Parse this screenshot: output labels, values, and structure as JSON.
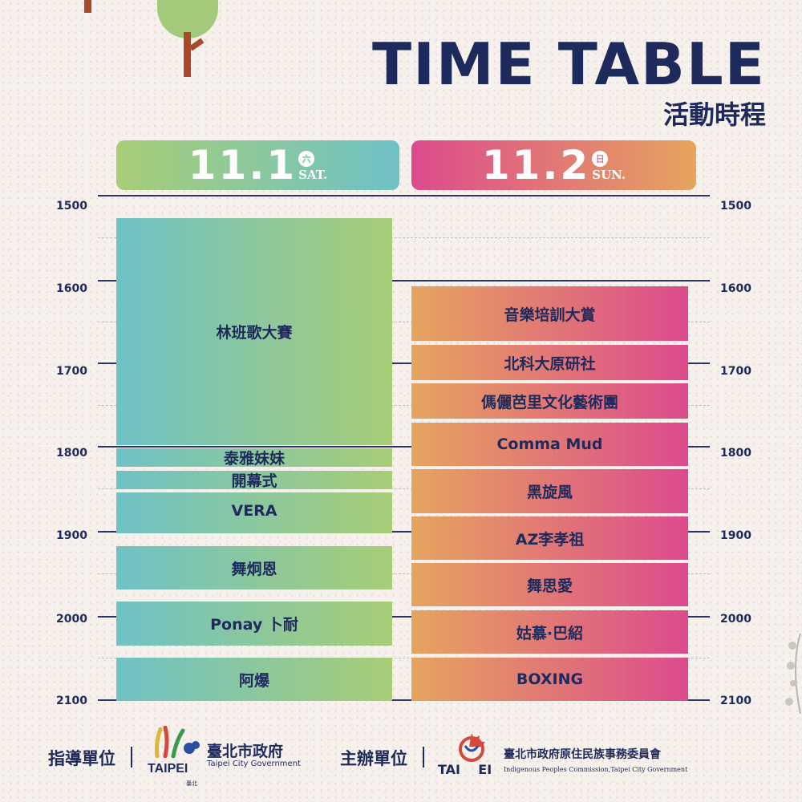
{
  "header": {
    "title": "TIME TABLE",
    "subtitle": "活動時程"
  },
  "days": [
    {
      "date": "11.1",
      "weekday_cn": "六",
      "weekday": "SAT."
    },
    {
      "date": "11.2",
      "weekday_cn": "日",
      "weekday": "SUN."
    }
  ],
  "time_labels": [
    "1500",
    "1600",
    "1700",
    "1800",
    "1900",
    "2000",
    "2100"
  ],
  "schedule": {
    "day1": [
      "林班歌大賽",
      "泰雅妹妹",
      "開幕式",
      "VERA",
      "舞炯恩",
      "Ponay 卜耐",
      "阿爆"
    ],
    "day2": [
      "音樂培訓大賞",
      "北科大原研社",
      "傌儷芭里文化藝術團",
      "Comma Mud",
      "黑旋風",
      "AZ李孝祖",
      "舞思愛",
      "姑慕·巴紹",
      "BOXING"
    ]
  },
  "footer": {
    "guide_label": "指導單位",
    "taipei_logo_text": "TAIPEI",
    "taipei_logo_small": "臺北",
    "taipei_gov_cn": "臺北市政府",
    "taipei_gov_en": "Taipei City Government",
    "organizer_label": "主辦單位",
    "ipc_logo_text": "TAI    EI",
    "ipc_cn": "臺北市政府原住民族事務委員會",
    "ipc_en": "Indigenous Peoples Commission,Taipei City Government"
  },
  "colors": {
    "navy": "#1f2a5c",
    "day1_gradient": [
      "#6ec2c6",
      "#a8cd76"
    ],
    "day2_gradient": [
      "#e6a45e",
      "#dc4b8d"
    ]
  }
}
